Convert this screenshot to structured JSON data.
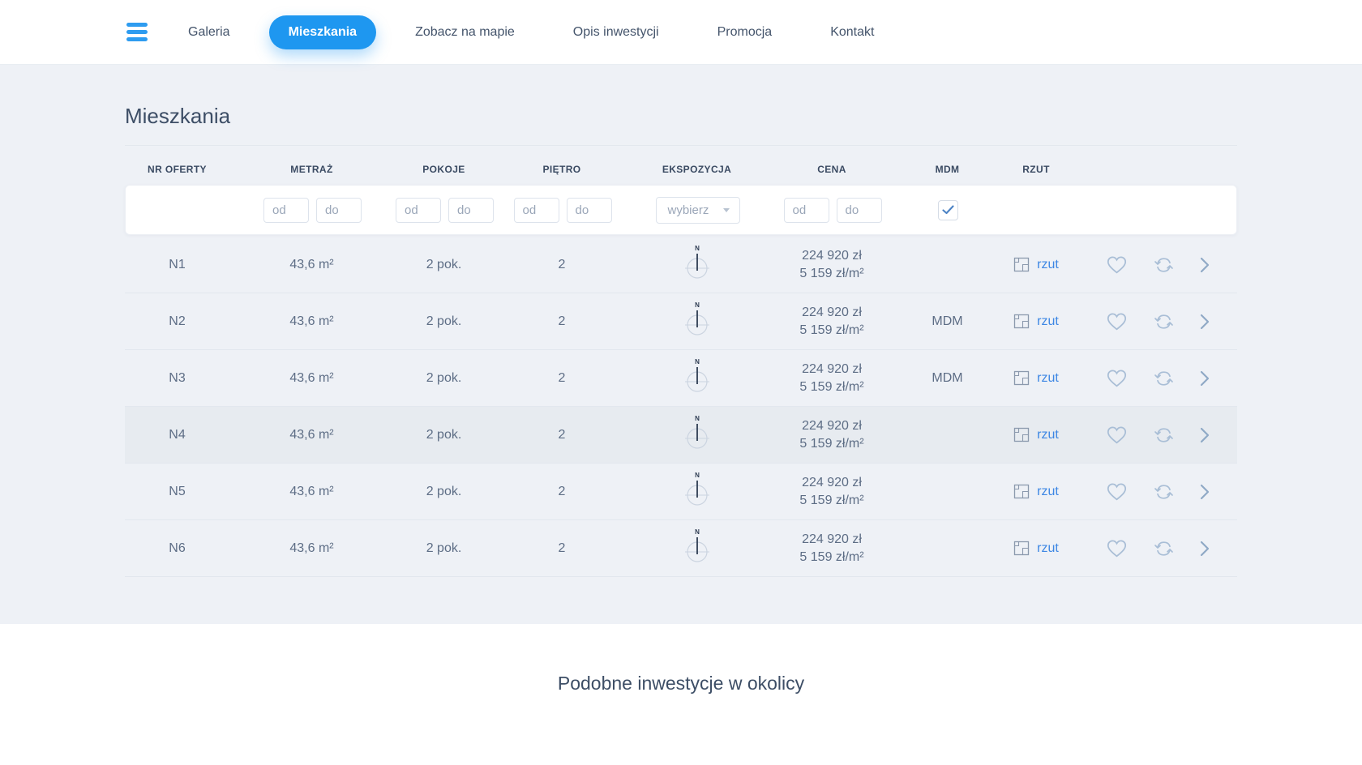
{
  "nav": {
    "menu_icon": "hamburger-icon",
    "items": [
      {
        "label": "Galeria",
        "active": false
      },
      {
        "label": "Mieszkania",
        "active": true
      },
      {
        "label": "Zobacz na mapie",
        "active": false
      },
      {
        "label": "Opis inwestycji",
        "active": false
      },
      {
        "label": "Promocja",
        "active": false
      },
      {
        "label": "Kontakt",
        "active": false
      }
    ]
  },
  "page": {
    "title": "Mieszkania"
  },
  "table": {
    "headers": [
      "NR OFERTY",
      "METRAŻ",
      "POKOJE",
      "PIĘTRO",
      "EKSPOZYCJA",
      "CENA",
      "MDM",
      "RZUT"
    ],
    "filters": {
      "metraz": {
        "od": "od",
        "do": "do"
      },
      "pokoje": {
        "od": "od",
        "do": "do"
      },
      "pietro": {
        "od": "od",
        "do": "do"
      },
      "ekspozycja": {
        "placeholder": "wybierz"
      },
      "cena": {
        "od": "od",
        "do": "do"
      },
      "mdm": {
        "checked": true
      }
    },
    "rzut_link_label": "rzut",
    "rows": [
      {
        "nr": "N1",
        "metraz": "43,6 m²",
        "pokoje": "2 pok.",
        "pietro": "2",
        "ekspozycja_icon": "compass-north",
        "cena": "224 920 zł",
        "cena_m2": "5 159 zł/m²",
        "mdm": "",
        "highlighted": false
      },
      {
        "nr": "N2",
        "metraz": "43,6 m²",
        "pokoje": "2 pok.",
        "pietro": "2",
        "ekspozycja_icon": "compass-north",
        "cena": "224 920 zł",
        "cena_m2": "5 159 zł/m²",
        "mdm": "MDM",
        "highlighted": false
      },
      {
        "nr": "N3",
        "metraz": "43,6 m²",
        "pokoje": "2 pok.",
        "pietro": "2",
        "ekspozycja_icon": "compass-north",
        "cena": "224 920 zł",
        "cena_m2": "5 159 zł/m²",
        "mdm": "MDM",
        "highlighted": false
      },
      {
        "nr": "N4",
        "metraz": "43,6 m²",
        "pokoje": "2 pok.",
        "pietro": "2",
        "ekspozycja_icon": "compass-north",
        "cena": "224 920 zł",
        "cena_m2": "5 159 zł/m²",
        "mdm": "",
        "highlighted": true
      },
      {
        "nr": "N5",
        "metraz": "43,6 m²",
        "pokoje": "2 pok.",
        "pietro": "2",
        "ekspozycja_icon": "compass-north",
        "cena": "224 920 zł",
        "cena_m2": "5 159 zł/m²",
        "mdm": "",
        "highlighted": false
      },
      {
        "nr": "N6",
        "metraz": "43,6 m²",
        "pokoje": "2 pok.",
        "pietro": "2",
        "ekspozycja_icon": "compass-north",
        "cena": "224 920 zł",
        "cena_m2": "5 159 zł/m²",
        "mdm": "",
        "highlighted": false
      }
    ]
  },
  "icons": {
    "menu": "hamburger-bars",
    "ekspozycja": "compass-north",
    "rzut": "floorplan-square",
    "favorite": "heart-outline",
    "compare": "swap-arrows",
    "open_row": "chevron-right",
    "mdm_filter": "checkmark",
    "select": "caret-down"
  },
  "similar": {
    "title": "Podobne inwestycje w okolicy"
  },
  "colors": {
    "accent_blue": "#1e97f0",
    "link_blue": "#3d87e4",
    "icon_blue_gray": "#a9bed6",
    "text_dark": "#3d4e66",
    "text_body": "#5d6d85",
    "main_background": "#eef1f6",
    "row_highlight": "#e7ebf0",
    "check_blue": "#4b82c4"
  }
}
